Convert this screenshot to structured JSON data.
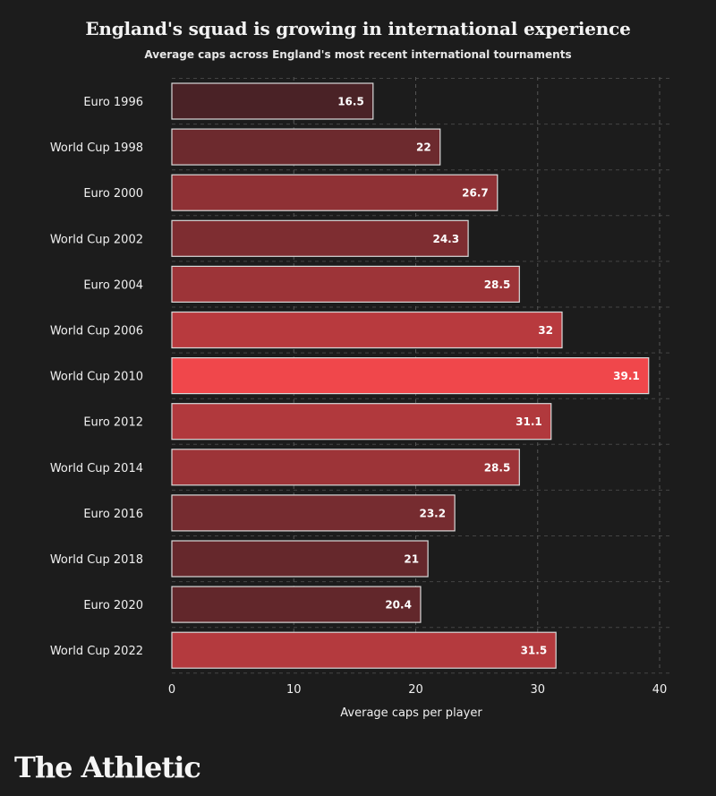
{
  "chart_data": {
    "type": "bar",
    "orientation": "horizontal",
    "title": "England's squad is growing in international experience",
    "subtitle": "Average caps across England's most recent international tournaments",
    "xlabel": "Average caps per player",
    "ylabel": "",
    "xlim": [
      0,
      40
    ],
    "xticks": [
      0,
      10,
      20,
      30,
      40
    ],
    "grid": true,
    "categories": [
      "Euro 1996",
      "World Cup 1998",
      "Euro 2000",
      "World Cup 2002",
      "Euro 2004",
      "World Cup 2006",
      "World Cup 2010",
      "Euro 2012",
      "World Cup 2014",
      "Euro 2016",
      "World Cup 2018",
      "Euro 2020",
      "World Cup 2022"
    ],
    "values": [
      16.5,
      22,
      26.7,
      24.3,
      28.5,
      32,
      39.1,
      31.1,
      28.5,
      23.2,
      21,
      20.4,
      31.5
    ],
    "value_labels": [
      "16.5",
      "22",
      "26.7",
      "24.3",
      "28.5",
      "32",
      "39.1",
      "31.1",
      "28.5",
      "23.2",
      "21",
      "20.4",
      "31.5"
    ],
    "color_low": "#4a2226",
    "color_high": "#f0474b"
  },
  "brand": "The Athletic",
  "colors": {
    "background": "#1c1c1c",
    "text": "#ffffff",
    "gridline": "#555555"
  }
}
